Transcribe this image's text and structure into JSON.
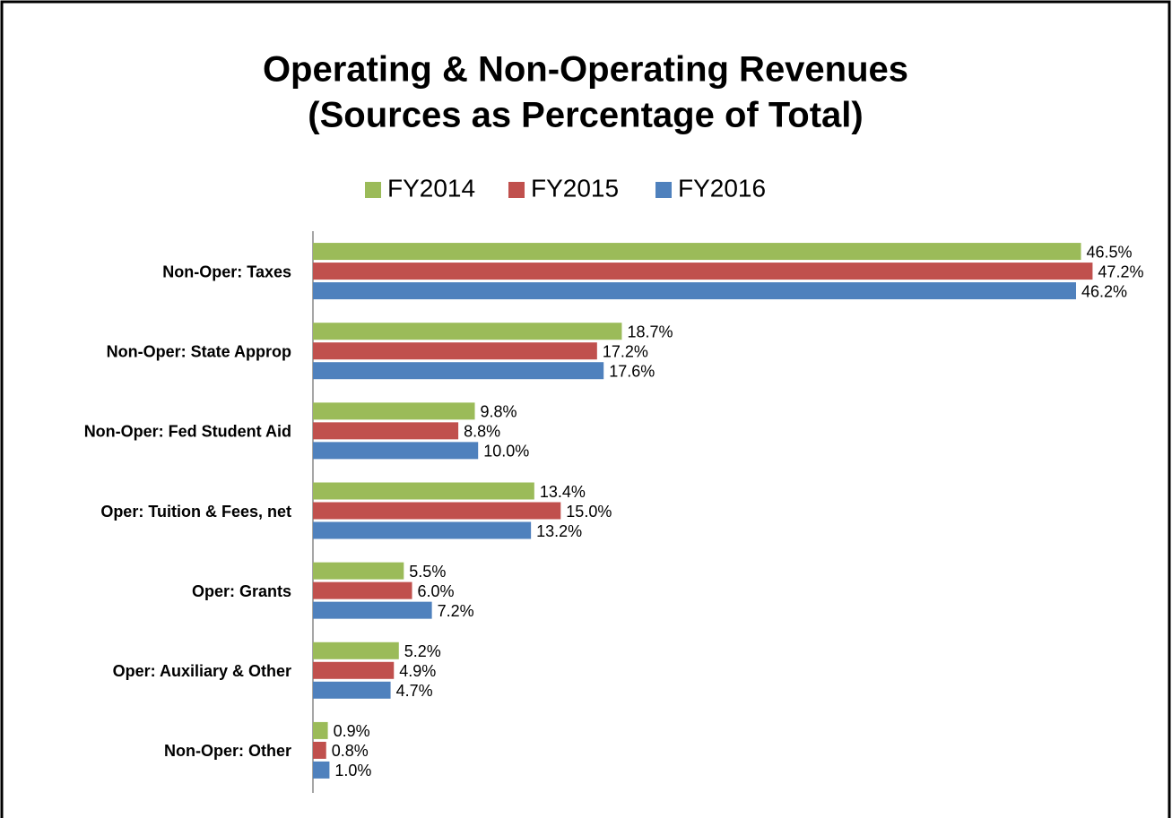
{
  "chart_data": {
    "type": "hbar",
    "title": [
      "Operating & Non-Operating Revenues",
      "(Sources as Percentage of Total)"
    ],
    "categories": [
      "Non-Oper: Taxes",
      "Non-Oper: State Approp",
      "Non-Oper: Fed Student Aid",
      "Oper: Tuition & Fees, net",
      "Oper: Grants",
      "Oper: Auxiliary & Other",
      "Non-Oper: Other"
    ],
    "series": [
      {
        "name": "FY2014",
        "color": "#9bbb59",
        "values": [
          46.5,
          18.7,
          9.8,
          13.4,
          5.5,
          5.2,
          0.9
        ],
        "value_labels": [
          "46.5%",
          "18.7%",
          "9.8%",
          "13.4%",
          "5.5%",
          "5.2%",
          "0.9%"
        ]
      },
      {
        "name": "FY2015",
        "color": "#c0504d",
        "values": [
          47.2,
          17.2,
          8.8,
          15.0,
          6.0,
          4.9,
          0.8
        ],
        "value_labels": [
          "47.2%",
          "17.2%",
          "8.8%",
          "15.0%",
          "6.0%",
          "4.9%",
          "0.8%"
        ]
      },
      {
        "name": "FY2016",
        "color": "#4f81bd",
        "values": [
          46.2,
          17.6,
          10.0,
          13.2,
          7.2,
          4.7,
          1.0
        ],
        "value_labels": [
          "46.2%",
          "17.6%",
          "10.0%",
          "13.2%",
          "7.2%",
          "4.7%",
          "1.0%"
        ]
      }
    ],
    "xlim": [
      0,
      50
    ],
    "legend": "top"
  }
}
